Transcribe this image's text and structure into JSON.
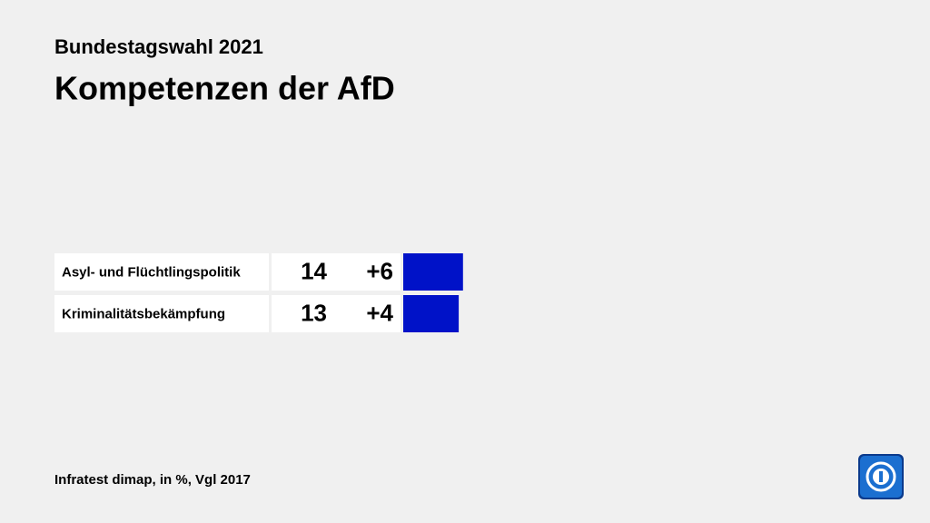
{
  "chart_data": {
    "type": "bar",
    "subtitle": "Bundestagswahl 2021",
    "title": "Kompetenzen der AfD",
    "categories": [
      "Asyl- und Flüchtlingspolitik",
      "Kriminalitätsbekämpfung"
    ],
    "values": [
      14,
      13
    ],
    "change": {
      "values": [
        6,
        4
      ],
      "value_labels": [
        "+6",
        "+4"
      ]
    },
    "color": "#0012c8",
    "source": "Infratest dimap, in %, Vgl 2017"
  }
}
